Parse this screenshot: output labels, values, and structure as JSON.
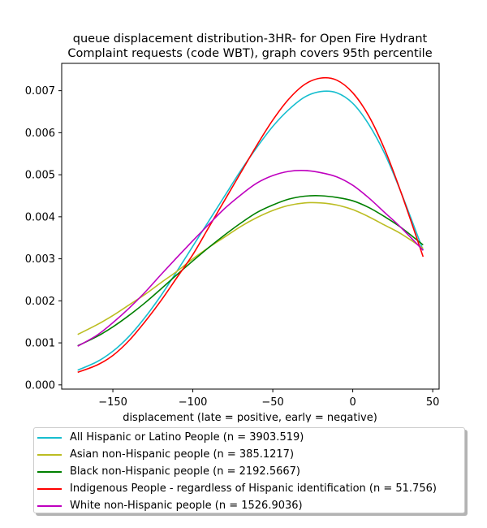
{
  "chart_data": {
    "type": "line",
    "title": "queue displacement distribution-3HR-  for Open Fire Hydrant\nComplaint  requests (code WBT), graph covers 95th percentile",
    "xlabel": "displacement (late = positive, early = negative)",
    "ylabel": "",
    "xlim": [
      -182,
      54
    ],
    "ylim": [
      -0.0001,
      0.00765
    ],
    "xticks": [
      -150,
      -100,
      -50,
      0,
      50
    ],
    "xtick_labels": [
      "−150",
      "−100",
      "−50",
      "0",
      "50"
    ],
    "yticks": [
      0.0,
      0.001,
      0.002,
      0.003,
      0.004,
      0.005,
      0.006,
      0.007
    ],
    "ytick_labels": [
      "0.000",
      "0.001",
      "0.002",
      "0.003",
      "0.004",
      "0.005",
      "0.006",
      "0.007"
    ],
    "grid": false,
    "legend_position": "below",
    "x": [
      -172,
      -160,
      -150,
      -140,
      -130,
      -120,
      -110,
      -100,
      -90,
      -80,
      -70,
      -60,
      -50,
      -40,
      -30,
      -20,
      -10,
      0,
      10,
      20,
      30,
      44
    ],
    "series": [
      {
        "name": "All Hispanic or Latino People (n = 3903.519)",
        "color": "#17becf",
        "values": [
          0.00035,
          0.00055,
          0.0008,
          0.00115,
          0.0016,
          0.00212,
          0.0027,
          0.0033,
          0.0039,
          0.0045,
          0.0051,
          0.00565,
          0.00615,
          0.00655,
          0.00685,
          0.00698,
          0.00695,
          0.0067,
          0.0062,
          0.0055,
          0.0046,
          0.0032
        ]
      },
      {
        "name": "Asian non-Hispanic people (n = 385.1217)",
        "color": "#bcbd22",
        "values": [
          0.0012,
          0.00143,
          0.00165,
          0.0019,
          0.00215,
          0.00243,
          0.0027,
          0.003,
          0.00327,
          0.00352,
          0.00377,
          0.00398,
          0.00415,
          0.00427,
          0.00433,
          0.00433,
          0.00428,
          0.00417,
          0.004,
          0.0038,
          0.0036,
          0.00325
        ]
      },
      {
        "name": "Black non-Hispanic people (n = 2192.5667)",
        "color": "#008000",
        "values": [
          0.00093,
          0.00115,
          0.00138,
          0.00165,
          0.00195,
          0.00228,
          0.00262,
          0.00295,
          0.00327,
          0.00357,
          0.00385,
          0.0041,
          0.00428,
          0.00442,
          0.00449,
          0.0045,
          0.00446,
          0.00438,
          0.00422,
          0.004,
          0.00375,
          0.00333
        ]
      },
      {
        "name": "Indigenous People - regardless of Hispanic identification (n = 51.756)",
        "color": "#ff0000",
        "values": [
          0.0003,
          0.00047,
          0.0007,
          0.00105,
          0.0015,
          0.002,
          0.00255,
          0.0031,
          0.00375,
          0.0044,
          0.00505,
          0.0057,
          0.0063,
          0.0068,
          0.00715,
          0.0073,
          0.00725,
          0.00695,
          0.0064,
          0.0056,
          0.0046,
          0.00305
        ]
      },
      {
        "name": "White non-Hispanic people (n = 1526.9036)",
        "color": "#bf00bf",
        "values": [
          0.00092,
          0.00118,
          0.00148,
          0.00182,
          0.0022,
          0.00262,
          0.00303,
          0.00343,
          0.00382,
          0.0042,
          0.00452,
          0.0048,
          0.00498,
          0.00508,
          0.0051,
          0.00505,
          0.00495,
          0.00475,
          0.00445,
          0.0041,
          0.00375,
          0.0032
        ]
      }
    ]
  }
}
